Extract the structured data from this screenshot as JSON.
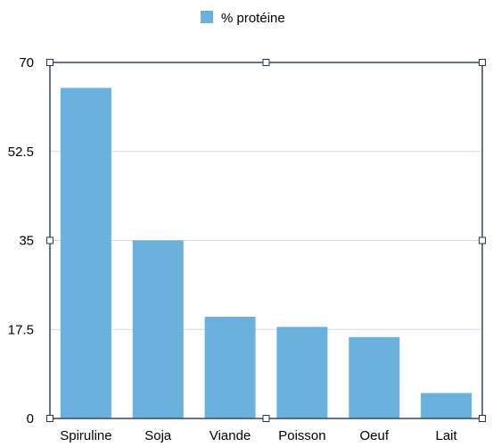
{
  "chart_data": {
    "type": "bar",
    "categories": [
      "Spiruline",
      "Soja",
      "Viande",
      "Poisson",
      "Oeuf",
      "Lait"
    ],
    "series": [
      {
        "name": "% protéine",
        "values": [
          65,
          35,
          20,
          18,
          16,
          5
        ]
      }
    ],
    "ylim": [
      0,
      70
    ],
    "yticks": [
      "0",
      "17.5",
      "35",
      "52.5",
      "70"
    ],
    "grid": true,
    "legend_position": "top",
    "colors": {
      "bar": "#6ab1de",
      "frame": "#2b4a6b",
      "grid": "#d9d9d9",
      "handle_fill": "#ffffff",
      "handle_stroke": "#333333"
    },
    "title": "",
    "xlabel": "",
    "ylabel": ""
  }
}
